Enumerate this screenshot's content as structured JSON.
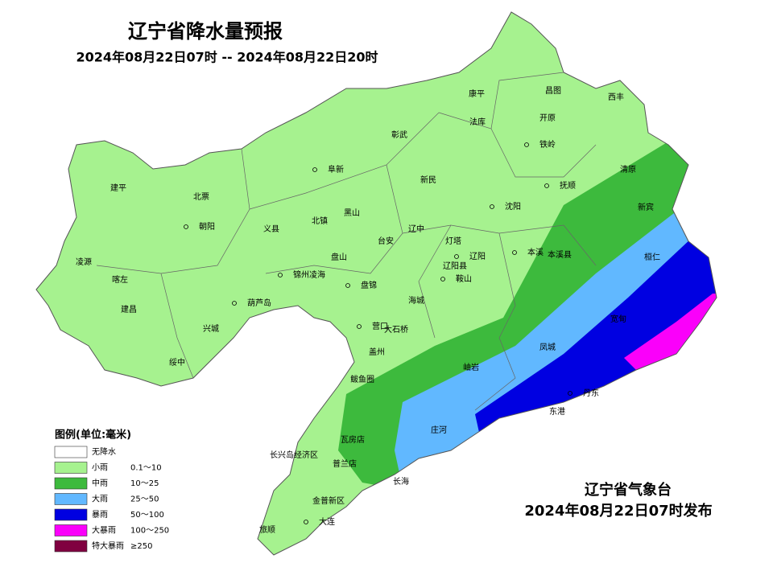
{
  "header": {
    "title": "辽宁省降水量预报",
    "subtitle": "2024年08月22日07时 -- 2024年08月22日20时"
  },
  "footer": {
    "issuer": "辽宁省气象台",
    "issued": "2024年08月22日07时发布"
  },
  "legend": {
    "title": "图例(单位:毫米)",
    "items": [
      {
        "name": "无降水",
        "color": "#ffffff"
      },
      {
        "name": "小雨",
        "range": "0.1～10",
        "color": "#a6f28f"
      },
      {
        "name": "中雨",
        "range": "10～25",
        "color": "#3dba3d"
      },
      {
        "name": "大雨",
        "range": "25～50",
        "color": "#61b8ff"
      },
      {
        "name": "暴雨",
        "range": "50～100",
        "color": "#0000e1"
      },
      {
        "name": "大暴雨",
        "range": "100～250",
        "color": "#fa00fa"
      },
      {
        "name": "特大暴雨",
        "range": "≥250",
        "color": "#800040"
      }
    ]
  },
  "cities": [
    "康平",
    "昌图",
    "西丰",
    "法库",
    "开原",
    "彰武",
    "铁岭",
    "阜新",
    "清原",
    "建平",
    "新民",
    "抚顺",
    "北票",
    "沈阳",
    "新宾",
    "黑山",
    "朝阳",
    "北镇",
    "义县",
    "辽中",
    "灯塔",
    "台安",
    "本溪",
    "本溪县",
    "桓仁",
    "凌源",
    "盘山",
    "辽阳",
    "锦州凌海",
    "辽阳县",
    "喀左",
    "鞍山",
    "盘锦",
    "葫芦岛",
    "海城",
    "宽甸",
    "建昌",
    "兴城",
    "营口",
    "大石桥",
    "盖州",
    "绥中",
    "凤城",
    "岫岩",
    "鲅鱼圈",
    "丹东",
    "东港",
    "瓦房店",
    "庄河",
    "长兴岛经济区",
    "普兰店",
    "长海",
    "金普新区",
    "旅顺",
    "大连"
  ]
}
